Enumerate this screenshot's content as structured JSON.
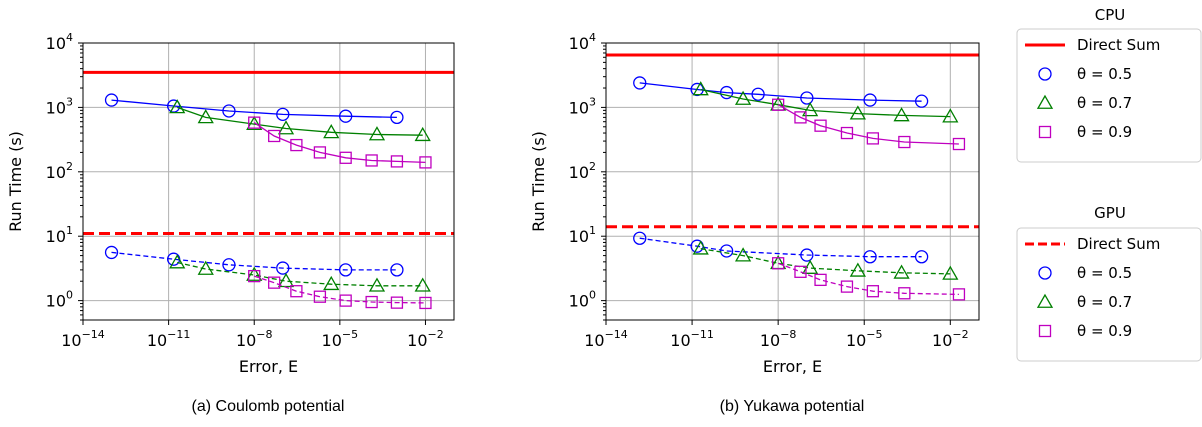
{
  "chart_data": [
    {
      "type": "line",
      "caption": "(a) Coulomb potential",
      "xlabel": "Error, E",
      "ylabel": "Run Time (s)",
      "xscale": "log",
      "yscale": "log",
      "xlim": [
        1e-14,
        0.1
      ],
      "ylim": [
        0.5,
        10000
      ],
      "xticks": [
        {
          "base": "10",
          "exp": "−14",
          "value": 1e-14
        },
        {
          "base": "10",
          "exp": "−11",
          "value": 1e-11
        },
        {
          "base": "10",
          "exp": "−8",
          "value": 1e-08
        },
        {
          "base": "10",
          "exp": "−5",
          "value": 1e-05
        },
        {
          "base": "10",
          "exp": "−2",
          "value": 0.01
        }
      ],
      "yticks": [
        {
          "base": "10",
          "exp": "0",
          "value": 1
        },
        {
          "base": "10",
          "exp": "1",
          "value": 10
        },
        {
          "base": "10",
          "exp": "2",
          "value": 100
        },
        {
          "base": "10",
          "exp": "3",
          "value": 1000
        },
        {
          "base": "10",
          "exp": "4",
          "value": 10000
        }
      ],
      "grid": true,
      "hlines": [
        {
          "name": "Direct Sum",
          "group": "CPU",
          "y": 3500,
          "color": "#ff0000",
          "dash": "solid"
        },
        {
          "name": "Direct Sum",
          "group": "GPU",
          "y": 11,
          "color": "#ff0000",
          "dash": "dashed"
        }
      ],
      "series": [
        {
          "name": "θ = 0.5",
          "group": "CPU",
          "color": "#0000ff",
          "marker": "circle",
          "dash": "solid",
          "x": [
            1e-13,
            1.5e-11,
            1.3e-09,
            1e-07,
            1.6e-05,
            0.001
          ],
          "y": [
            1300,
            1050,
            880,
            780,
            730,
            700
          ]
        },
        {
          "name": "θ = 0.7",
          "group": "CPU",
          "color": "#008000",
          "marker": "triangle",
          "dash": "solid",
          "x": [
            2e-11,
            2e-10,
            1e-08,
            1.3e-07,
            5e-06,
            0.0002,
            0.008
          ],
          "y": [
            1000,
            700,
            550,
            470,
            410,
            380,
            370
          ]
        },
        {
          "name": "θ = 0.9",
          "group": "CPU",
          "color": "#bf00bf",
          "marker": "square",
          "dash": "solid",
          "x": [
            1e-08,
            5e-08,
            3e-07,
            2e-06,
            1.6e-05,
            0.00013,
            0.001,
            0.01
          ],
          "y": [
            580,
            360,
            260,
            200,
            165,
            150,
            145,
            140
          ]
        },
        {
          "name": "θ = 0.5",
          "group": "GPU",
          "color": "#0000ff",
          "marker": "circle",
          "dash": "dashed",
          "x": [
            1e-13,
            1.5e-11,
            1.3e-09,
            1e-07,
            1.6e-05,
            0.001
          ],
          "y": [
            5.6,
            4.4,
            3.6,
            3.2,
            3.0,
            3.0
          ]
        },
        {
          "name": "θ = 0.7",
          "group": "GPU",
          "color": "#008000",
          "marker": "triangle",
          "dash": "dashed",
          "x": [
            2e-11,
            2e-10,
            1e-08,
            1.3e-07,
            5e-06,
            0.0002,
            0.008
          ],
          "y": [
            3.9,
            3.1,
            2.5,
            2.0,
            1.8,
            1.7,
            1.7
          ]
        },
        {
          "name": "θ = 0.9",
          "group": "GPU",
          "color": "#bf00bf",
          "marker": "square",
          "dash": "dashed",
          "x": [
            1e-08,
            5e-08,
            3e-07,
            2e-06,
            1.6e-05,
            0.00013,
            0.001,
            0.01
          ],
          "y": [
            2.4,
            1.9,
            1.4,
            1.15,
            1.0,
            0.95,
            0.93,
            0.92
          ]
        }
      ]
    },
    {
      "type": "line",
      "caption": "(b) Yukawa potential",
      "xlabel": "Error, E",
      "ylabel": "Run Time (s)",
      "xscale": "log",
      "yscale": "log",
      "xlim": [
        1e-14,
        0.1
      ],
      "ylim": [
        0.5,
        10000
      ],
      "xticks": [
        {
          "base": "10",
          "exp": "−14",
          "value": 1e-14
        },
        {
          "base": "10",
          "exp": "−11",
          "value": 1e-11
        },
        {
          "base": "10",
          "exp": "−8",
          "value": 1e-08
        },
        {
          "base": "10",
          "exp": "−5",
          "value": 1e-05
        },
        {
          "base": "10",
          "exp": "−2",
          "value": 0.01
        }
      ],
      "yticks": [
        {
          "base": "10",
          "exp": "0",
          "value": 1
        },
        {
          "base": "10",
          "exp": "1",
          "value": 10
        },
        {
          "base": "10",
          "exp": "2",
          "value": 100
        },
        {
          "base": "10",
          "exp": "3",
          "value": 1000
        },
        {
          "base": "10",
          "exp": "4",
          "value": 10000
        }
      ],
      "grid": true,
      "hlines": [
        {
          "name": "Direct Sum",
          "group": "CPU",
          "y": 6500,
          "color": "#ff0000",
          "dash": "solid"
        },
        {
          "name": "Direct Sum",
          "group": "GPU",
          "y": 14,
          "color": "#ff0000",
          "dash": "dashed"
        }
      ],
      "series": [
        {
          "name": "θ = 0.5",
          "group": "CPU",
          "color": "#0000ff",
          "marker": "circle",
          "dash": "solid",
          "x": [
            1.5e-13,
            1.5e-11,
            1.6e-10,
            2e-09,
            1e-07,
            1.6e-05,
            0.001
          ],
          "y": [
            2400,
            1900,
            1700,
            1600,
            1400,
            1300,
            1250
          ]
        },
        {
          "name": "θ = 0.7",
          "group": "CPU",
          "color": "#008000",
          "marker": "triangle",
          "dash": "solid",
          "x": [
            2e-11,
            6e-10,
            1e-08,
            1.3e-07,
            6e-06,
            0.0002,
            0.01
          ],
          "y": [
            1900,
            1350,
            1100,
            900,
            800,
            750,
            720
          ]
        },
        {
          "name": "θ = 0.9",
          "group": "CPU",
          "color": "#bf00bf",
          "marker": "square",
          "dash": "solid",
          "x": [
            1e-08,
            6e-08,
            3e-07,
            2.5e-06,
            2e-05,
            0.00025,
            0.02
          ],
          "y": [
            1100,
            700,
            520,
            400,
            330,
            290,
            270
          ]
        },
        {
          "name": "θ = 0.5",
          "group": "GPU",
          "color": "#0000ff",
          "marker": "circle",
          "dash": "dashed",
          "x": [
            1.5e-13,
            1.5e-11,
            1.6e-10,
            1e-07,
            1.6e-05,
            0.001
          ],
          "y": [
            9.3,
            7.0,
            5.9,
            5.1,
            4.8,
            4.8
          ]
        },
        {
          "name": "θ = 0.7",
          "group": "GPU",
          "color": "#008000",
          "marker": "triangle",
          "dash": "dashed",
          "x": [
            2e-11,
            6e-10,
            1e-08,
            1.3e-07,
            6e-06,
            0.0002,
            0.01
          ],
          "y": [
            6.4,
            5.0,
            3.8,
            3.2,
            2.9,
            2.7,
            2.6
          ]
        },
        {
          "name": "θ = 0.9",
          "group": "GPU",
          "color": "#bf00bf",
          "marker": "square",
          "dash": "dashed",
          "x": [
            1e-08,
            6e-08,
            3e-07,
            2.5e-06,
            2e-05,
            0.00025,
            0.02
          ],
          "y": [
            3.8,
            2.8,
            2.1,
            1.65,
            1.4,
            1.3,
            1.25
          ]
        }
      ]
    }
  ],
  "legends": [
    {
      "title": "CPU",
      "entries": [
        {
          "label": "Direct Sum",
          "kind": "line",
          "color": "#ff0000",
          "dash": "solid"
        },
        {
          "label": "θ = 0.5",
          "kind": "marker",
          "marker": "circle",
          "color": "#0000ff"
        },
        {
          "label": "θ = 0.7",
          "kind": "marker",
          "marker": "triangle",
          "color": "#008000"
        },
        {
          "label": "θ = 0.9",
          "kind": "marker",
          "marker": "square",
          "color": "#bf00bf"
        }
      ]
    },
    {
      "title": "GPU",
      "entries": [
        {
          "label": "Direct Sum",
          "kind": "line",
          "color": "#ff0000",
          "dash": "dashed"
        },
        {
          "label": "θ = 0.5",
          "kind": "marker",
          "marker": "circle",
          "color": "#0000ff"
        },
        {
          "label": "θ = 0.7",
          "kind": "marker",
          "marker": "triangle",
          "color": "#008000"
        },
        {
          "label": "θ = 0.9",
          "kind": "marker",
          "marker": "square",
          "color": "#bf00bf"
        }
      ]
    }
  ]
}
